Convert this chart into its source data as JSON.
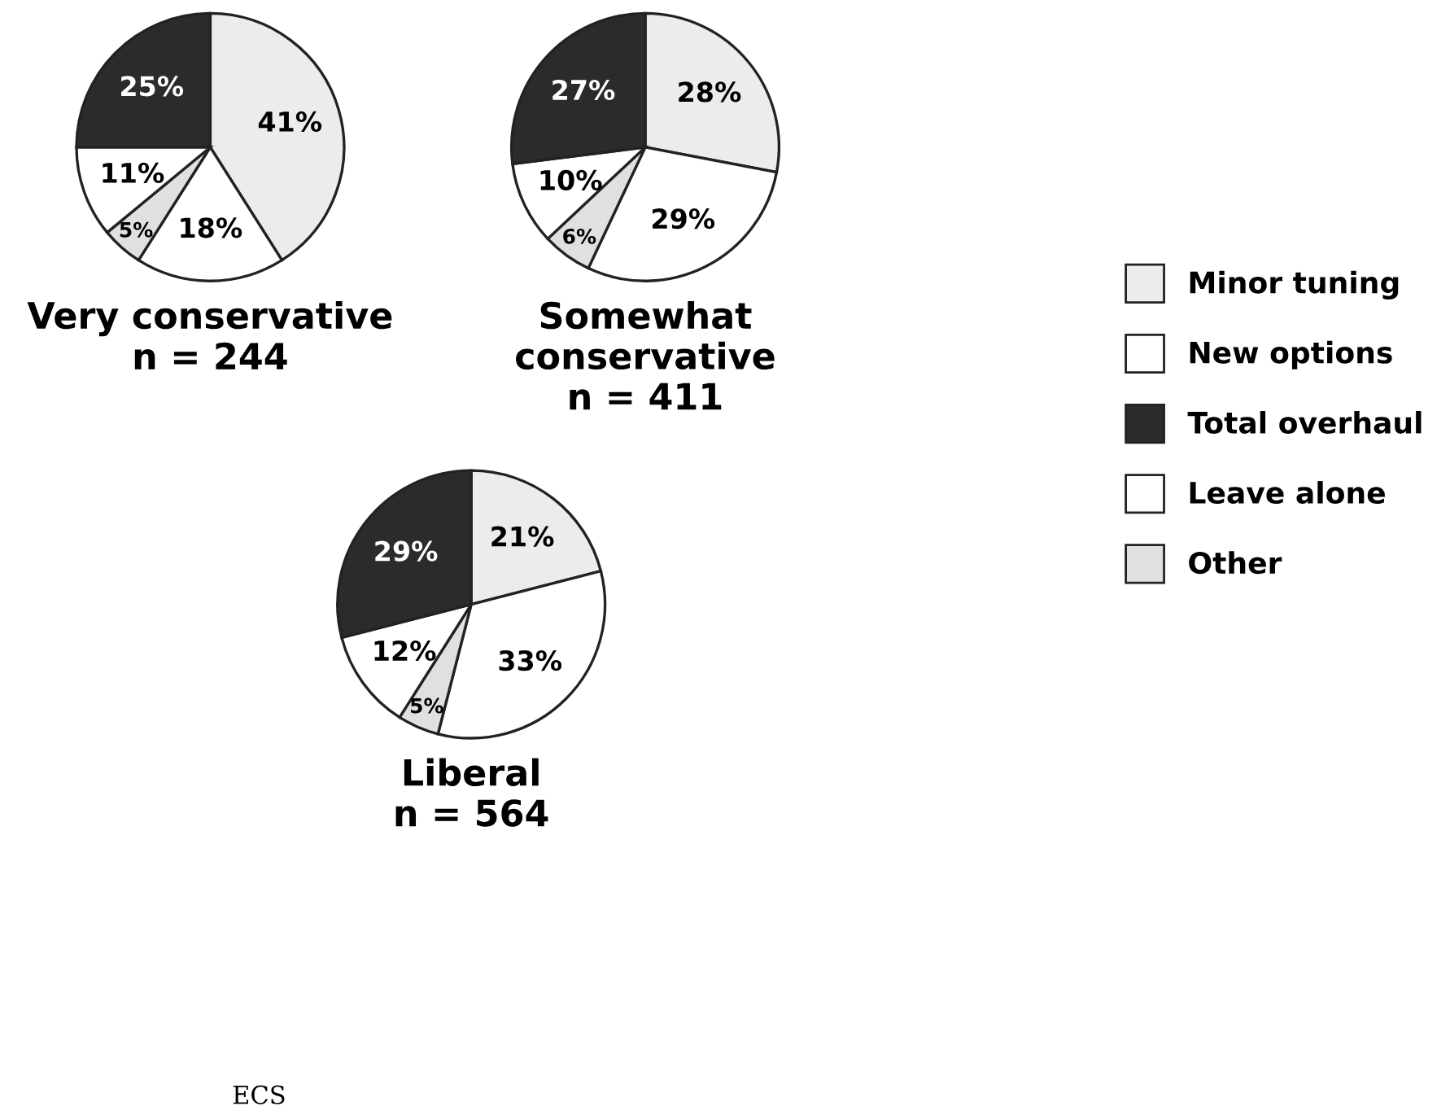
{
  "chart_data": [
    {
      "type": "pie",
      "title": "Very conservative\nn = 244",
      "categories": [
        "Minor tuning",
        "New options",
        "Other",
        "Leave alone",
        "Total overhaul"
      ],
      "values": [
        41,
        18,
        5,
        11,
        25
      ],
      "value_labels": [
        "41%",
        "18%",
        "5%",
        "11%",
        "25%"
      ],
      "colors": [
        "#ececec",
        "#ffffff",
        "#e0e0e0",
        "#ffffff",
        "#2b2b2b"
      ],
      "legend": "right"
    },
    {
      "type": "pie",
      "title": "Somewhat\nconservative\nn = 411",
      "categories": [
        null,
        null,
        null,
        null,
        null
      ],
      "values": [
        28,
        29,
        6,
        10,
        27
      ],
      "value_labels": [
        "28%",
        "29%",
        "6%",
        "10%",
        "27%"
      ],
      "colors": [
        "#ececec",
        "#ffffff",
        "#e0e0e0",
        "#ffffff",
        "#2b2b2b"
      ]
    },
    {
      "type": "pie",
      "title": "Liberal\nn = 564",
      "categories": [
        null,
        null,
        null,
        null,
        null
      ],
      "values": [
        21,
        33,
        5,
        12,
        29
      ],
      "value_labels": [
        "21%",
        "33%",
        "5%",
        "12%",
        "29%"
      ],
      "colors": [
        "#ececec",
        "#ffffff",
        "#e0e0e0",
        "#ffffff",
        "#2b2b2b"
      ],
      "annotations": [
        "ECS"
      ]
    }
  ]
}
